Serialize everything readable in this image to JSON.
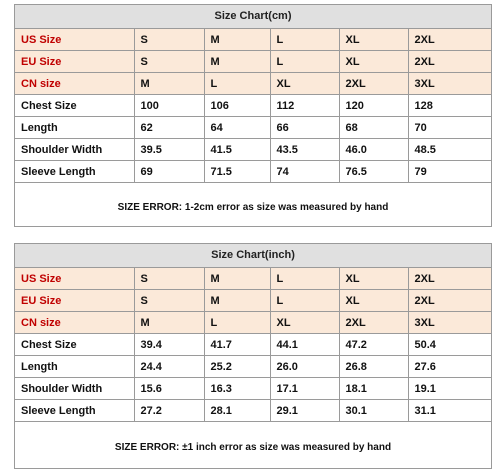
{
  "cm_chart": {
    "title": "Size Chart(cm)",
    "rows": [
      {
        "label": "US Size",
        "values": [
          "S",
          "M",
          "L",
          "XL",
          "2XL"
        ],
        "highlight": true
      },
      {
        "label": "EU Size",
        "values": [
          "S",
          "M",
          "L",
          "XL",
          "2XL"
        ],
        "highlight": true
      },
      {
        "label": "CN size",
        "values": [
          "M",
          "L",
          "XL",
          "2XL",
          "3XL"
        ],
        "highlight": true
      },
      {
        "label": "Chest Size",
        "values": [
          "100",
          "106",
          "112",
          "120",
          "128"
        ],
        "highlight": false
      },
      {
        "label": "Length",
        "values": [
          "62",
          "64",
          "66",
          "68",
          "70"
        ],
        "highlight": false
      },
      {
        "label": "Shoulder Width",
        "values": [
          "39.5",
          "41.5",
          "43.5",
          "46.0",
          "48.5"
        ],
        "highlight": false
      },
      {
        "label": "Sleeve Length",
        "values": [
          "69",
          "71.5",
          "74",
          "76.5",
          "79"
        ],
        "highlight": false
      }
    ],
    "note": "SIZE ERROR: 1-2cm error as size was measured by hand"
  },
  "inch_chart": {
    "title": "Size Chart(inch)",
    "rows": [
      {
        "label": "US Size",
        "values": [
          "S",
          "M",
          "L",
          "XL",
          "2XL"
        ],
        "highlight": true
      },
      {
        "label": "EU Size",
        "values": [
          "S",
          "M",
          "L",
          "XL",
          "2XL"
        ],
        "highlight": true
      },
      {
        "label": "CN size",
        "values": [
          "M",
          "L",
          "XL",
          "2XL",
          "3XL"
        ],
        "highlight": true
      },
      {
        "label": "Chest Size",
        "values": [
          "39.4",
          "41.7",
          "44.1",
          "47.2",
          "50.4"
        ],
        "highlight": false
      },
      {
        "label": "Length",
        "values": [
          "24.4",
          "25.2",
          "26.0",
          "26.8",
          "27.6"
        ],
        "highlight": false
      },
      {
        "label": "Shoulder Width",
        "values": [
          "15.6",
          "16.3",
          "17.1",
          "18.1",
          "19.1"
        ],
        "highlight": false
      },
      {
        "label": "Sleeve Length",
        "values": [
          "27.2",
          "28.1",
          "29.1",
          "30.1",
          "31.1"
        ],
        "highlight": false
      }
    ],
    "note": "SIZE ERROR: ±1 inch error as size was measured by hand"
  },
  "colors": {
    "size_row_bg": "#fbe9d9",
    "size_label_text": "#c00000",
    "title_bg": "#e0e0e0",
    "border": "#9a9a9a"
  }
}
